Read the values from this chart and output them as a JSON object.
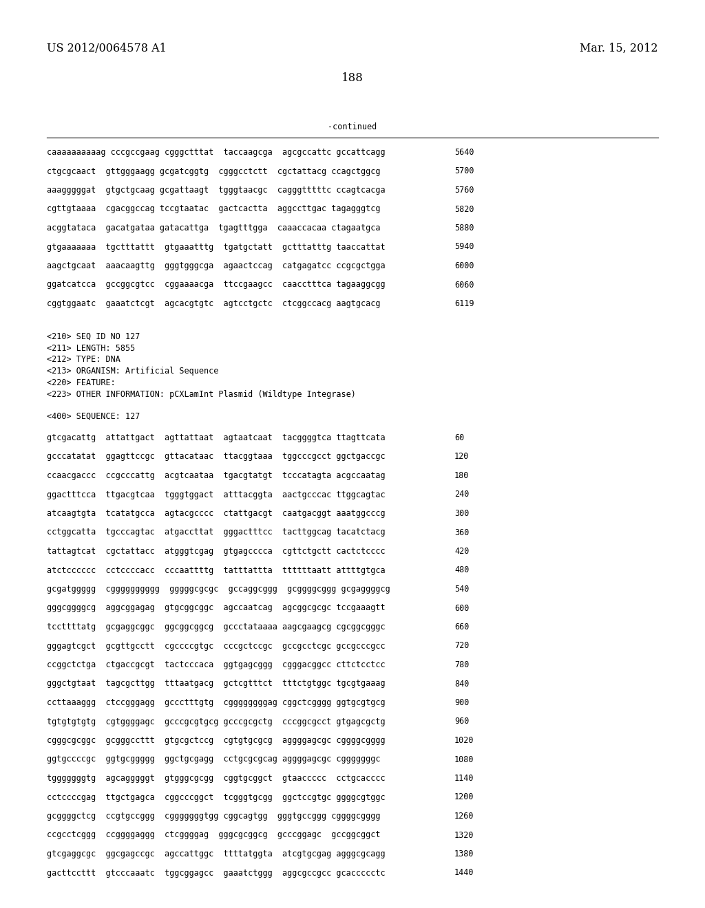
{
  "header_left": "US 2012/0064578 A1",
  "header_right": "Mar. 15, 2012",
  "page_number": "188",
  "continued_label": "-continued",
  "background_color": "#ffffff",
  "text_color": "#000000",
  "font_size_header": 11.5,
  "font_size_page": 12,
  "font_size_body": 8.5,
  "sequence_data_top": [
    [
      "caaaaaaaaaag cccgccgaag cgggctttat  taccaagcga  agcgccattc gccattcagg",
      "5640"
    ],
    [
      "ctgcgcaact  gttgggaagg gcgatcggtg  cgggcctctt  cgctattacg ccagctggcg",
      "5700"
    ],
    [
      "aaagggggat  gtgctgcaag gcgattaagt  tgggtaacgc  cagggtttttc ccagtcacga",
      "5760"
    ],
    [
      "cgttgtaaaa  cgacggccag tccgtaatac  gactcactta  aggccttgac tagagggtcg",
      "5820"
    ],
    [
      "acggtataca  gacatgataa gatacattga  tgagtttgga  caaaccacaa ctagaatgca",
      "5880"
    ],
    [
      "gtgaaaaaaa  tgctttattt  gtgaaatttg  tgatgctatt  gctttatttg taaccattat",
      "5940"
    ],
    [
      "aagctgcaat  aaacaagttg  gggtgggcga  agaactccag  catgagatcc ccgcgctgga",
      "6000"
    ],
    [
      "ggatcatcca  gccggcgtcc  cggaaaacga  ttccgaagcc  caacctttca tagaaggcgg",
      "6060"
    ],
    [
      "cggtggaatc  gaaatctcgt  agcacgtgtc  agtcctgctc  ctcggccacg aagtgcacg",
      "6119"
    ]
  ],
  "metadata": [
    "<210> SEQ ID NO 127",
    "<211> LENGTH: 5855",
    "<212> TYPE: DNA",
    "<213> ORGANISM: Artificial Sequence",
    "<220> FEATURE:",
    "<223> OTHER INFORMATION: pCXLamInt Plasmid (Wildtype Integrase)"
  ],
  "sequence_label": "<400> SEQUENCE: 127",
  "sequence_data_bottom": [
    [
      "gtcgacattg  attattgact  agttattaat  agtaatcaat  tacggggtca ttagttcata",
      "60"
    ],
    [
      "gcccatatat  ggagttccgc  gttacataac  ttacggtaaa  tggcccgcct ggctgaccgc",
      "120"
    ],
    [
      "ccaacgaccc  ccgcccattg  acgtcaataa  tgacgtatgt  tcccatagta acgccaatag",
      "180"
    ],
    [
      "ggactttcca  ttgacgtcaa  tgggtggact  atttacggta  aactgcccac ttggcagtac",
      "240"
    ],
    [
      "atcaagtgta  tcatatgcca  agtacgcccc  ctattgacgt  caatgacggt aaatggcccg",
      "300"
    ],
    [
      "cctggcatta  tgcccagtac  atgaccttat  gggactttcc  tacttggcag tacatctacg",
      "360"
    ],
    [
      "tattagtcat  cgctattacc  atgggtcgag  gtgagcccca  cgttctgctt cactctcccc",
      "420"
    ],
    [
      "atctcccccc  cctccccacc  cccaattttg  tatttattta  ttttttaatt attttgtgca",
      "480"
    ],
    [
      "gcgatggggg  cgggggggggg  gggggcgcgc  gccaggcggg  gcggggcggg gcgaggggcg",
      "540"
    ],
    [
      "gggcggggcg  aggcggagag  gtgcggcggc  agccaatcag  agcggcgcgc tccgaaagtt",
      "600"
    ],
    [
      "tccttttatg  gcgaggcggc  ggcggcggcg  gccctataaaa aagcgaagcg cgcggcgggc",
      "660"
    ],
    [
      "gggagtcgct  gcgttgcctt  cgccccgtgc  cccgctccgc  gccgcctcgc gccgcccgcc",
      "720"
    ],
    [
      "ccggctctga  ctgaccgcgt  tactcccaca  ggtgagcggg  cgggacggcc cttctcctcc",
      "780"
    ],
    [
      "gggctgtaat  tagcgcttgg  tttaatgacg  gctcgtttct  tttctgtggc tgcgtgaaag",
      "840"
    ],
    [
      "ccttaaaggg  ctccgggagg  gccctttgtg  cggggggggag cggctcgggg ggtgcgtgcg",
      "900"
    ],
    [
      "tgtgtgtgtg  cgtggggagc  gcccgcgtgcg gcccgcgctg  cccggcgcct gtgagcgctg",
      "960"
    ],
    [
      "cgggcgcggc  gcgggccttt  gtgcgctccg  cgtgtgcgcg  aggggagcgc cggggcgggg",
      "1020"
    ],
    [
      "ggtgccccgc  ggtgcggggg  ggctgcgagg  cctgcgcgcag aggggagcgc cgggggggc",
      "1080"
    ],
    [
      "tgggggggtg  agcagggggt  gtgggcgcgg  cggtgcggct  gtaaccccc  cctgcacccc",
      "1140"
    ],
    [
      "cctccccgag  ttgctgagca  cggcccggct  tcgggtgcgg  ggctccgtgc ggggcgtggc",
      "1200"
    ],
    [
      "gcggggctcg  ccgtgccggg  cgggggggtgg cggcagtgg  gggtgccggg cggggcgggg",
      "1260"
    ],
    [
      "ccgcctcggg  ccggggaggg  ctcggggag  gggcgcggcg  gcccggagc  gccggcggct",
      "1320"
    ],
    [
      "gtcgaggcgc  ggcgagccgc  agccattggc  ttttatggta  atcgtgcgag agggcgcagg",
      "1380"
    ],
    [
      "gacttccttt  gtcccaaatc  tggcggagcc  gaaatctggg  aggcgccgcc gcaccccctc",
      "1440"
    ]
  ]
}
